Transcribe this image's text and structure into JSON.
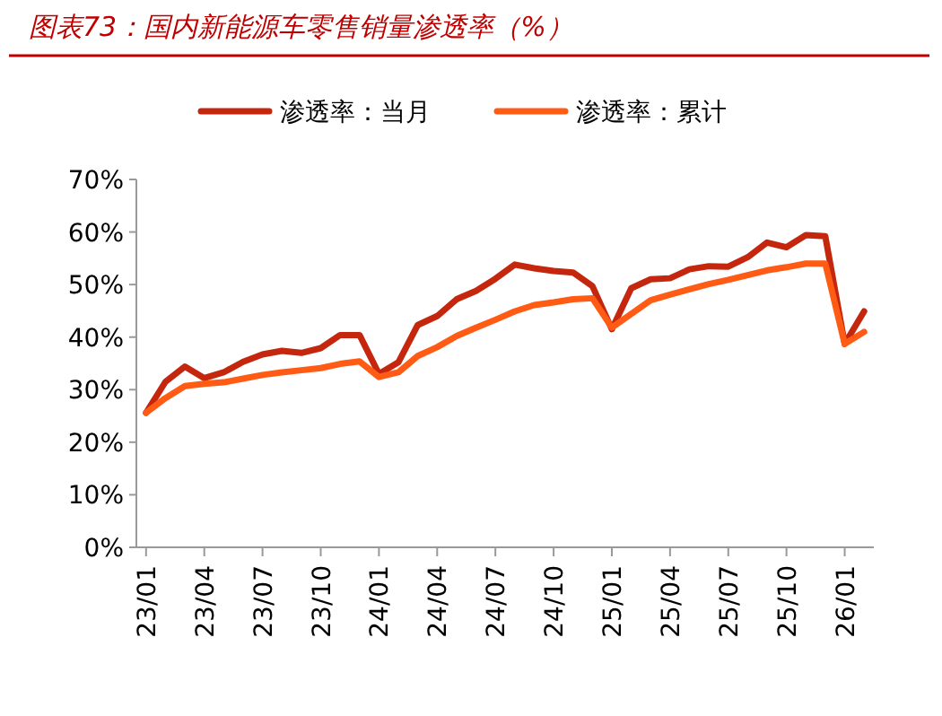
{
  "chart_data": {
    "type": "line",
    "title": "图表73：国内新能源车零售销量渗透率（%）",
    "categories": [
      "23/01",
      null,
      null,
      "23/04",
      null,
      null,
      "23/07",
      null,
      null,
      "23/10",
      null,
      null,
      "24/01",
      null,
      null,
      "24/04",
      null,
      null,
      "24/07",
      null,
      null,
      "24/10",
      null,
      null,
      "25/01",
      null,
      null,
      "25/04",
      null,
      null,
      "25/07",
      null,
      null,
      "25/10",
      null,
      null,
      "26/01",
      null
    ],
    "series": [
      {
        "name": "渗透率：当月",
        "color": "#c4270e",
        "values": [
          25.6,
          31.5,
          34.4,
          32.2,
          33.3,
          35.3,
          36.7,
          37.4,
          37.0,
          37.9,
          40.4,
          40.4,
          33.0,
          35.2,
          42.3,
          44.0,
          47.2,
          48.8,
          51.1,
          53.8,
          53.1,
          52.6,
          52.3,
          49.7,
          41.5,
          49.3,
          51.0,
          51.2,
          52.9,
          53.5,
          53.4,
          55.2,
          58.0,
          57.1,
          59.4,
          59.2,
          38.7,
          44.9
        ]
      },
      {
        "name": "渗透率：累计",
        "color": "#ff5b14",
        "values": [
          25.6,
          28.4,
          30.7,
          31.1,
          31.4,
          32.1,
          32.8,
          33.3,
          33.7,
          34.1,
          34.9,
          35.4,
          32.4,
          33.3,
          36.4,
          38.1,
          40.2,
          41.8,
          43.3,
          44.9,
          46.1,
          46.6,
          47.2,
          47.4,
          41.8,
          44.4,
          47.0,
          48.1,
          49.1,
          50.1,
          50.9,
          51.8,
          52.7,
          53.3,
          54.0,
          54.0,
          38.7,
          41.0
        ]
      }
    ],
    "ylim": [
      0,
      70
    ],
    "yticks": [
      {
        "value": 0,
        "label": "0%"
      },
      {
        "value": 10,
        "label": "10%"
      },
      {
        "value": 20,
        "label": "20%"
      },
      {
        "value": 30,
        "label": "30%"
      },
      {
        "value": 40,
        "label": "40%"
      },
      {
        "value": 50,
        "label": "50%"
      },
      {
        "value": 60,
        "label": "60%"
      },
      {
        "value": 70,
        "label": "70%"
      }
    ],
    "grid": false,
    "legend": "top",
    "marker": "none",
    "line_style": "solid"
  }
}
